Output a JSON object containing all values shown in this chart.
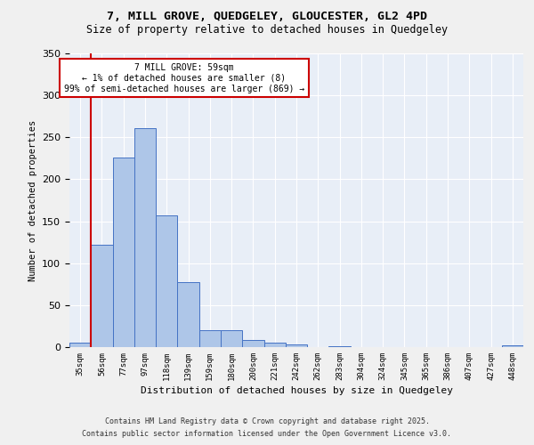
{
  "title1": "7, MILL GROVE, QUEDGELEY, GLOUCESTER, GL2 4PD",
  "title2": "Size of property relative to detached houses in Quedgeley",
  "xlabel": "Distribution of detached houses by size in Quedgeley",
  "ylabel": "Number of detached properties",
  "bin_labels": [
    "35sqm",
    "56sqm",
    "77sqm",
    "97sqm",
    "118sqm",
    "139sqm",
    "159sqm",
    "180sqm",
    "200sqm",
    "221sqm",
    "242sqm",
    "262sqm",
    "283sqm",
    "304sqm",
    "324sqm",
    "345sqm",
    "365sqm",
    "386sqm",
    "407sqm",
    "427sqm",
    "448sqm"
  ],
  "bar_values": [
    5,
    122,
    226,
    261,
    157,
    77,
    20,
    20,
    8,
    5,
    3,
    0,
    1,
    0,
    0,
    0,
    0,
    0,
    0,
    0,
    2
  ],
  "bar_color": "#aec6e8",
  "bar_edge_color": "#4472c4",
  "vline_x": 0.5,
  "vline_color": "#cc0000",
  "annotation_text": "7 MILL GROVE: 59sqm\n← 1% of detached houses are smaller (8)\n99% of semi-detached houses are larger (869) →",
  "annotation_box_color": "#ffffff",
  "annotation_edge_color": "#cc0000",
  "ylim": [
    0,
    350
  ],
  "yticks": [
    0,
    50,
    100,
    150,
    200,
    250,
    300,
    350
  ],
  "background_color": "#e8eef7",
  "fig_background_color": "#f0f0f0",
  "footer_line1": "Contains HM Land Registry data © Crown copyright and database right 2025.",
  "footer_line2": "Contains public sector information licensed under the Open Government Licence v3.0."
}
